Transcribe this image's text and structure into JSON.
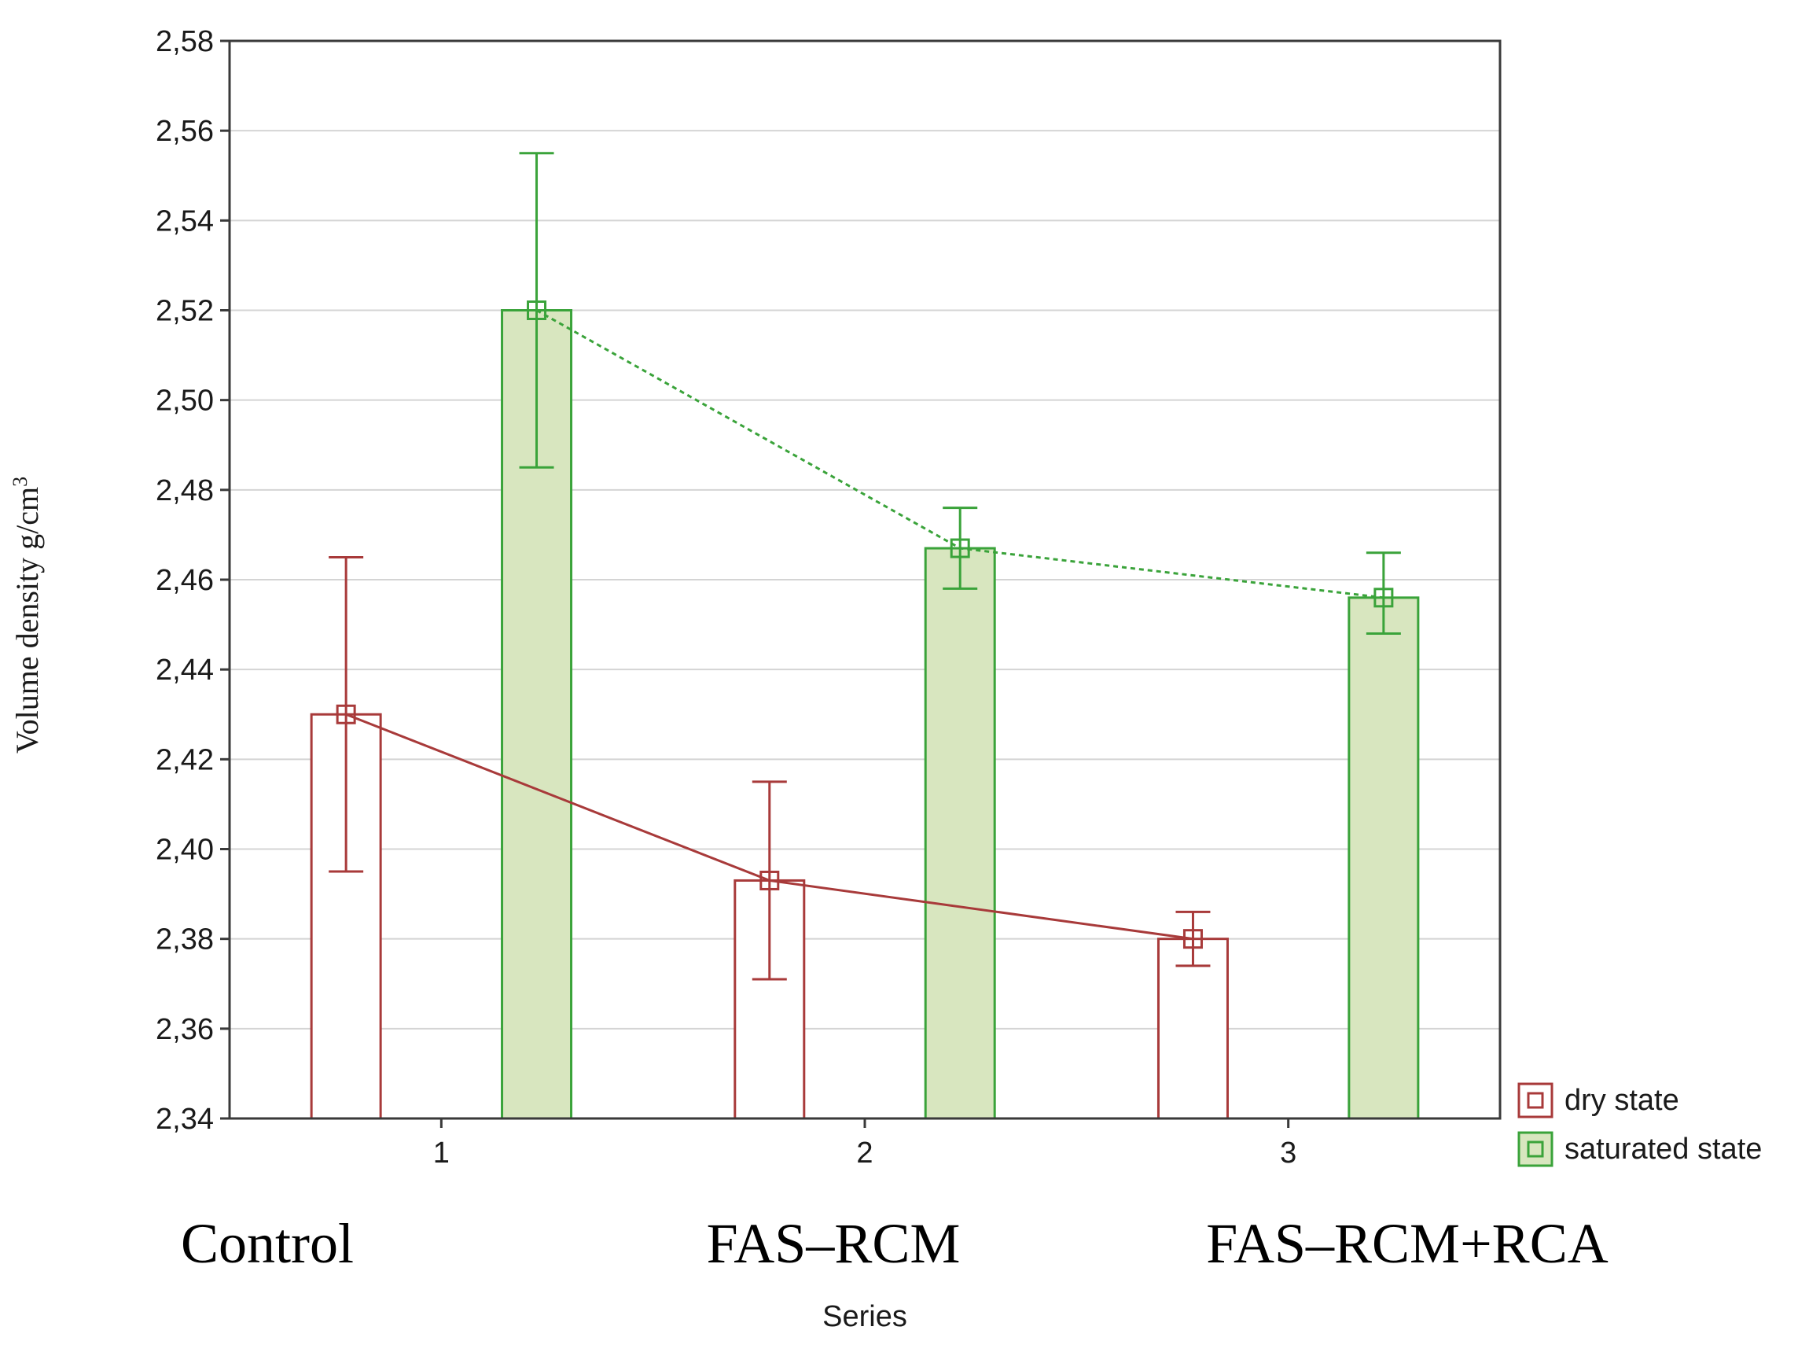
{
  "chart_data": {
    "type": "bar",
    "xlabel": "Series",
    "ylabel": "Volume density g/cm",
    "ylabel_superscript": "3",
    "ylim": [
      2.34,
      2.58
    ],
    "yticks": [
      "2,34",
      "2,36",
      "2,38",
      "2,40",
      "2,42",
      "2,44",
      "2,46",
      "2,48",
      "2,50",
      "2,52",
      "2,54",
      "2,56",
      "2,58"
    ],
    "categories": [
      "1",
      "2",
      "3"
    ],
    "group_labels": [
      "Control",
      "FAS–RCM",
      "FAS–RCM+RCA"
    ],
    "grid": true,
    "legend_position": "right",
    "series": [
      {
        "name": "dry state",
        "values": [
          2.43,
          2.393,
          2.38
        ],
        "error_low": [
          2.395,
          2.371,
          2.374
        ],
        "error_high": [
          2.465,
          2.415,
          2.386
        ],
        "color": "#a83a3a",
        "fill": "#ffffff",
        "line_style": "solid"
      },
      {
        "name": "saturated state",
        "values": [
          2.52,
          2.467,
          2.456
        ],
        "error_low": [
          2.485,
          2.458,
          2.448
        ],
        "error_high": [
          2.555,
          2.476,
          2.466
        ],
        "color": "#3aa33a",
        "fill": "#d8e6bf",
        "line_style": "dotted"
      }
    ]
  }
}
